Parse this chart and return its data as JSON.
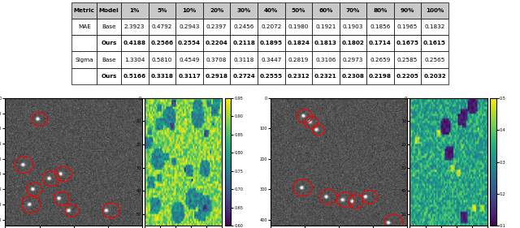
{
  "table": {
    "col_headers": [
      "Metric",
      "Model",
      "1%",
      "5%",
      "10%",
      "20%",
      "30%",
      "40%",
      "50%",
      "60%",
      "70%",
      "80%",
      "90%",
      "100%"
    ],
    "rows": [
      [
        "MAE",
        "Base",
        "2.3923",
        "0.4792",
        "0.2943",
        "0.2397",
        "0.2456",
        "0.2072",
        "0.1980",
        "0.1921",
        "0.1903",
        "0.1856",
        "0.1965",
        "0.1832"
      ],
      [
        "MAE",
        "Ours",
        "0.4188",
        "0.2566",
        "0.2554",
        "0.2204",
        "0.2118",
        "0.1895",
        "0.1824",
        "0.1813",
        "0.1802",
        "0.1714",
        "0.1675",
        "0.1615"
      ],
      [
        "Sigma",
        "Base",
        "1.3304",
        "0.5810",
        "0.4549",
        "0.3708",
        "0.3118",
        "0.3447",
        "0.2819",
        "0.3106",
        "0.2973",
        "0.2659",
        "0.2585",
        "0.2565"
      ],
      [
        "Sigma",
        "Ours",
        "0.5166",
        "0.3318",
        "0.3117",
        "0.2918",
        "0.2724",
        "0.2555",
        "0.2312",
        "0.2321",
        "0.2308",
        "0.2198",
        "0.2205",
        "0.2032"
      ]
    ],
    "bold_rows": [
      1,
      3
    ],
    "header_bg": "#c8c8c8"
  },
  "clim1": [
    0.6,
    0.95
  ],
  "clim2": [
    0.1,
    0.5
  ],
  "cmap1": "viridis",
  "cmap2": "viridis",
  "circles1": [
    [
      100,
      70,
      18
    ],
    [
      55,
      220,
      22
    ],
    [
      135,
      265,
      20
    ],
    [
      85,
      300,
      18
    ],
    [
      170,
      250,
      20
    ],
    [
      75,
      350,
      22
    ],
    [
      165,
      330,
      18
    ],
    [
      195,
      370,
      16
    ],
    [
      310,
      370,
      20
    ]
  ],
  "circles2": [
    [
      100,
      60,
      18
    ],
    [
      120,
      80,
      16
    ],
    [
      140,
      105,
      14
    ],
    [
      95,
      295,
      22
    ],
    [
      170,
      325,
      20
    ],
    [
      220,
      335,
      20
    ],
    [
      250,
      340,
      18
    ],
    [
      290,
      325,
      18
    ],
    [
      360,
      410,
      22
    ]
  ]
}
